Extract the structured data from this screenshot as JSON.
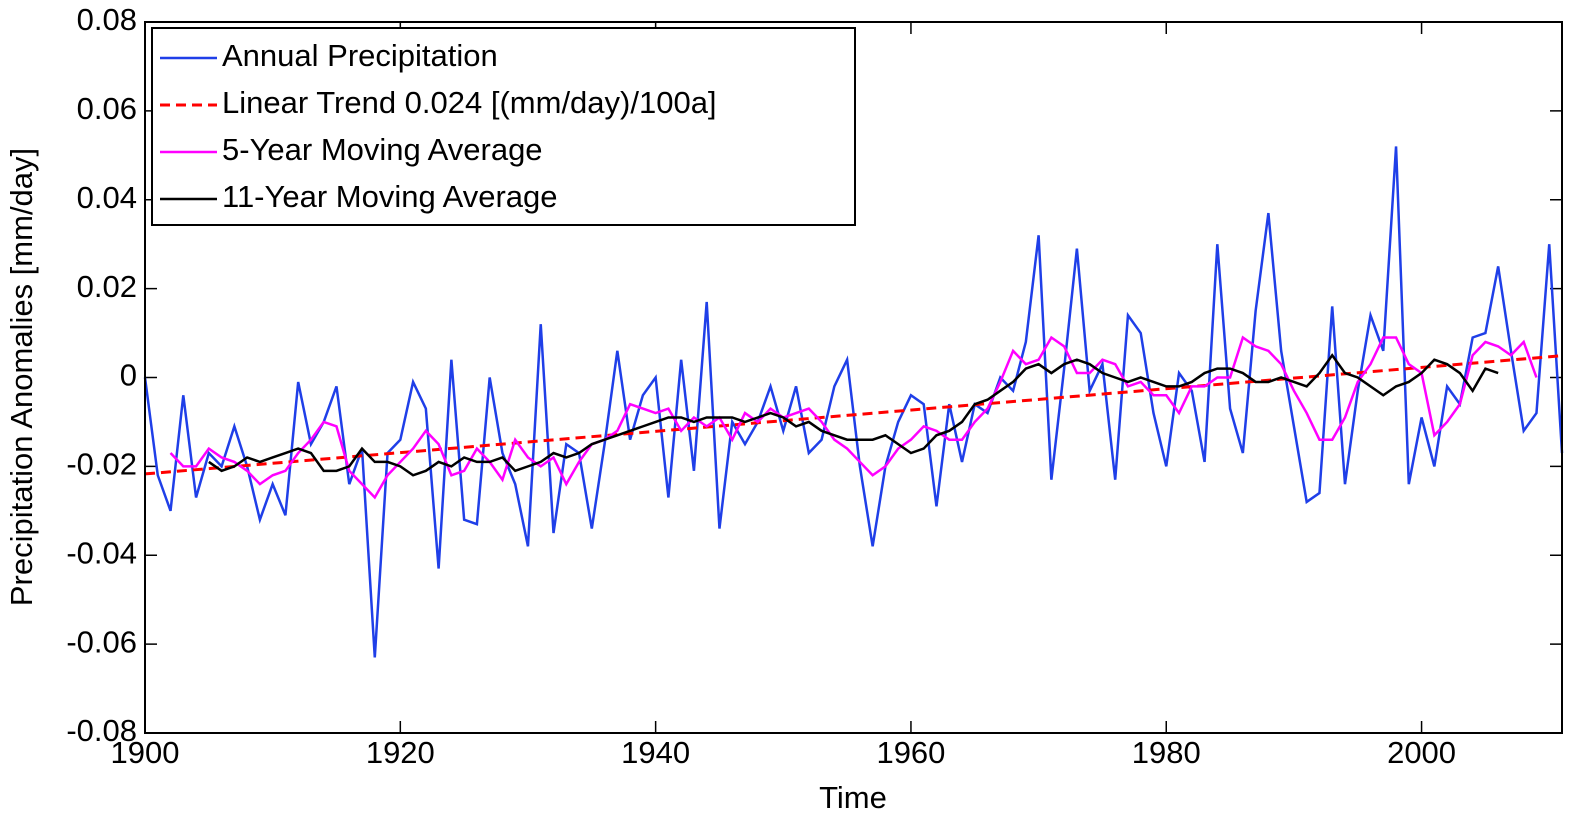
{
  "chart_data": {
    "type": "line",
    "x_label": "Time",
    "y_label": "Precipitation Anomalies [mm/day]",
    "xlim": [
      1900,
      2011
    ],
    "xticks": [
      1900,
      1920,
      1940,
      1960,
      1980,
      2000
    ],
    "ylim": [
      -0.08,
      0.08
    ],
    "yticks": [
      -0.08,
      -0.06,
      -0.04,
      -0.02,
      0,
      0.02,
      0.04,
      0.06,
      0.08
    ],
    "grid": false,
    "legend": "upper left",
    "x": [
      1900,
      1901,
      1902,
      1903,
      1904,
      1905,
      1906,
      1907,
      1908,
      1909,
      1910,
      1911,
      1912,
      1913,
      1914,
      1915,
      1916,
      1917,
      1918,
      1919,
      1920,
      1921,
      1922,
      1923,
      1924,
      1925,
      1926,
      1927,
      1928,
      1929,
      1930,
      1931,
      1932,
      1933,
      1934,
      1935,
      1936,
      1937,
      1938,
      1939,
      1940,
      1941,
      1942,
      1943,
      1944,
      1945,
      1946,
      1947,
      1948,
      1949,
      1950,
      1951,
      1952,
      1953,
      1954,
      1955,
      1956,
      1957,
      1958,
      1959,
      1960,
      1961,
      1962,
      1963,
      1964,
      1965,
      1966,
      1967,
      1968,
      1969,
      1970,
      1971,
      1972,
      1973,
      1974,
      1975,
      1976,
      1977,
      1978,
      1979,
      1980,
      1981,
      1982,
      1983,
      1984,
      1985,
      1986,
      1987,
      1988,
      1989,
      1990,
      1991,
      1992,
      1993,
      1994,
      1995,
      1996,
      1997,
      1998,
      1999,
      2000,
      2001,
      2002,
      2003,
      2004,
      2005,
      2006,
      2007,
      2008,
      2009,
      2010,
      2011
    ],
    "series": [
      {
        "name": "Annual Precipitation",
        "color": "#1f3fe8",
        "style": "solid",
        "values": [
          0,
          -0.022,
          -0.03,
          -0.004,
          -0.027,
          -0.017,
          -0.02,
          -0.011,
          -0.02,
          -0.032,
          -0.024,
          -0.031,
          -0.001,
          -0.015,
          -0.01,
          -0.002,
          -0.024,
          -0.016,
          -0.063,
          -0.017,
          -0.014,
          -0.001,
          -0.007,
          -0.043,
          0.004,
          -0.032,
          -0.033,
          0,
          -0.017,
          -0.024,
          -0.038,
          0.012,
          -0.035,
          -0.015,
          -0.017,
          -0.034,
          -0.015,
          0.006,
          -0.014,
          -0.004,
          0,
          -0.027,
          0.004,
          -0.021,
          0.017,
          -0.034,
          -0.01,
          -0.015,
          -0.01,
          -0.002,
          -0.012,
          -0.002,
          -0.017,
          -0.014,
          -0.002,
          0.004,
          -0.02,
          -0.038,
          -0.02,
          -0.01,
          -0.004,
          -0.006,
          -0.029,
          -0.006,
          -0.019,
          -0.006,
          -0.008,
          0,
          -0.003,
          0.008,
          0.032,
          -0.023,
          0.002,
          0.029,
          -0.003,
          0.003,
          -0.023,
          0.014,
          0.01,
          -0.008,
          -0.02,
          0.001,
          -0.003,
          -0.019,
          0.03,
          -0.007,
          -0.017,
          0.015,
          0.037,
          0.006,
          -0.011,
          -0.028,
          -0.026,
          0.016,
          -0.024,
          -0.003,
          0.014,
          0.006,
          0.052,
          -0.024,
          -0.009,
          -0.02,
          -0.002,
          -0.006,
          0.009,
          0.01,
          0.025,
          0.006,
          -0.012,
          -0.008,
          0.03,
          -0.017
        ]
      },
      {
        "name": "Linear Trend 0.024 [(mm/day)/100a]",
        "color": "#ff0000",
        "style": "dashed",
        "x": [
          1900,
          2011
        ],
        "values": [
          -0.0217,
          0.0049
        ]
      },
      {
        "name": "5-Year Moving Average",
        "color": "#ff00ff",
        "style": "solid",
        "values": [
          null,
          null,
          -0.017,
          -0.02,
          -0.02,
          -0.016,
          -0.018,
          -0.019,
          -0.021,
          -0.024,
          -0.022,
          -0.021,
          -0.017,
          -0.014,
          -0.01,
          -0.011,
          -0.021,
          -0.024,
          -0.027,
          -0.022,
          -0.019,
          -0.016,
          -0.012,
          -0.015,
          -0.022,
          -0.021,
          -0.016,
          -0.019,
          -0.023,
          -0.014,
          -0.018,
          -0.02,
          -0.018,
          -0.024,
          -0.019,
          -0.015,
          -0.014,
          -0.012,
          -0.006,
          -0.007,
          -0.008,
          -0.007,
          -0.012,
          -0.009,
          -0.011,
          -0.009,
          -0.014,
          -0.008,
          -0.01,
          -0.007,
          -0.009,
          -0.008,
          -0.007,
          -0.01,
          -0.014,
          -0.016,
          -0.019,
          -0.022,
          -0.02,
          -0.016,
          -0.014,
          -0.011,
          -0.012,
          -0.014,
          -0.014,
          -0.01,
          -0.007,
          -0.001,
          0.006,
          0.003,
          0.004,
          0.009,
          0.007,
          0.001,
          0.001,
          0.004,
          0.003,
          -0.002,
          -0.001,
          -0.004,
          -0.004,
          -0.008,
          -0.002,
          -0.002,
          0,
          0,
          0.009,
          0.007,
          0.006,
          0.003,
          -0.003,
          -0.008,
          -0.014,
          -0.014,
          -0.009,
          -0.001,
          0.003,
          0.009,
          0.009,
          0.003,
          0.001,
          -0.013,
          -0.01,
          -0.006,
          0.005,
          0.008,
          0.007,
          0.005,
          0.008,
          0,
          null,
          null
        ]
      },
      {
        "name": "11-Year Moving Average",
        "color": "#000000",
        "style": "solid",
        "values": [
          null,
          null,
          null,
          null,
          null,
          -0.019,
          -0.021,
          -0.02,
          -0.018,
          -0.019,
          -0.018,
          -0.017,
          -0.016,
          -0.017,
          -0.021,
          -0.021,
          -0.02,
          -0.016,
          -0.019,
          -0.019,
          -0.02,
          -0.022,
          -0.021,
          -0.019,
          -0.02,
          -0.018,
          -0.019,
          -0.019,
          -0.018,
          -0.021,
          -0.02,
          -0.019,
          -0.017,
          -0.018,
          -0.017,
          -0.015,
          -0.014,
          -0.013,
          -0.012,
          -0.011,
          -0.01,
          -0.009,
          -0.009,
          -0.01,
          -0.009,
          -0.009,
          -0.009,
          -0.01,
          -0.009,
          -0.008,
          -0.009,
          -0.011,
          -0.01,
          -0.012,
          -0.013,
          -0.014,
          -0.014,
          -0.014,
          -0.013,
          -0.015,
          -0.017,
          -0.016,
          -0.013,
          -0.012,
          -0.01,
          -0.006,
          -0.005,
          -0.003,
          -0.001,
          0.002,
          0.003,
          0.001,
          0.003,
          0.004,
          0.003,
          0.001,
          0,
          -0.001,
          0,
          -0.001,
          -0.002,
          -0.002,
          -0.001,
          0.001,
          0.002,
          0.002,
          0.001,
          -0.001,
          -0.001,
          0,
          -0.001,
          -0.002,
          0.001,
          0.005,
          0.001,
          0,
          -0.002,
          -0.004,
          -0.002,
          -0.001,
          0.001,
          0.004,
          0.003,
          0.001,
          -0.003,
          0.002,
          0.001,
          null,
          null,
          null,
          null,
          null
        ]
      }
    ]
  }
}
